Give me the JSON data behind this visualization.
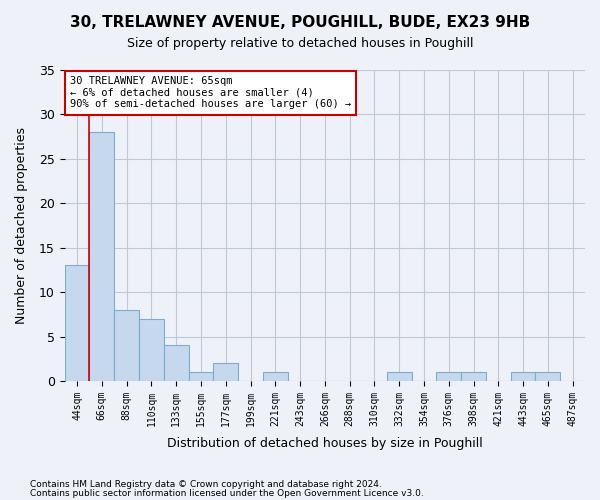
{
  "title1": "30, TRELAWNEY AVENUE, POUGHILL, BUDE, EX23 9HB",
  "title2": "Size of property relative to detached houses in Poughill",
  "xlabel": "Distribution of detached houses by size in Poughill",
  "ylabel": "Number of detached properties",
  "footer1": "Contains HM Land Registry data © Crown copyright and database right 2024.",
  "footer2": "Contains public sector information licensed under the Open Government Licence v3.0.",
  "bin_labels": [
    "44sqm",
    "66sqm",
    "88sqm",
    "110sqm",
    "133sqm",
    "155sqm",
    "177sqm",
    "199sqm",
    "221sqm",
    "243sqm",
    "266sqm",
    "288sqm",
    "310sqm",
    "332sqm",
    "354sqm",
    "376sqm",
    "398sqm",
    "421sqm",
    "443sqm",
    "465sqm",
    "487sqm"
  ],
  "bar_values": [
    13,
    28,
    8,
    7,
    4,
    1,
    2,
    0,
    1,
    0,
    0,
    0,
    0,
    1,
    0,
    1,
    1,
    0,
    1,
    1,
    0
  ],
  "bar_color": "#c5d8ed",
  "bar_edge_color": "#7aadcf",
  "annotation_box_text": "30 TRELAWNEY AVENUE: 65sqm\n← 6% of detached houses are smaller (4)\n90% of semi-detached houses are larger (60) →",
  "annotation_box_color": "#ffffff",
  "annotation_box_edge_color": "#cc0000",
  "vline_x_offset": 0.5,
  "vline_color": "#cc0000",
  "grid_color": "#c0c8d8",
  "background_color": "#eef2f8",
  "ylim": [
    0,
    35
  ],
  "yticks": [
    0,
    5,
    10,
    15,
    20,
    25,
    30,
    35
  ]
}
